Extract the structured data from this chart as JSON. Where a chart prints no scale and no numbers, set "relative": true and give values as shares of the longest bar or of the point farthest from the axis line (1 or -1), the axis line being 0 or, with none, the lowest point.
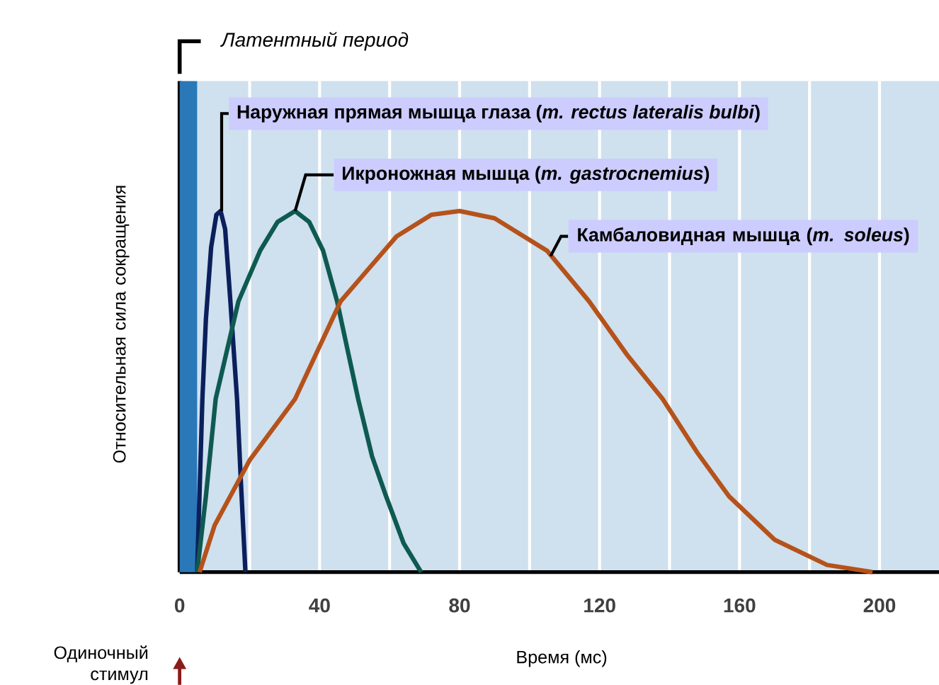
{
  "chart_data": {
    "type": "line",
    "relative": true,
    "xlabel": "Время (мс)",
    "ylabel": "Относительная сила сокращения",
    "xlim": [
      0,
      217
    ],
    "xticks": [
      0,
      40,
      80,
      120,
      160,
      200
    ],
    "grid": "x",
    "bands": [
      {
        "axis": "x",
        "from": 0,
        "to": 5,
        "label": "*Латентный период*",
        "color": "#2a78b8"
      }
    ],
    "annotations": [
      "Одиночный стимул"
    ],
    "series": [
      {
        "name": "Наружная прямая мышца глаза (*m. rectus lateralis bulbi*)",
        "color": "#0b1f5c",
        "x": [
          5,
          6.5,
          7.5,
          9,
          10.5,
          11.7,
          13,
          14.5,
          16.4,
          17.5,
          18.8
        ],
        "values": [
          0,
          0.48,
          0.7,
          0.9,
          0.99,
          1,
          0.95,
          0.75,
          0.48,
          0.25,
          0
        ]
      },
      {
        "name": "Икроножная мышца (*m. gastrocnemius*)",
        "color": "#0e5a50",
        "x": [
          5,
          7.5,
          10.3,
          16.8,
          23,
          28,
          33,
          37,
          41,
          45,
          51,
          55,
          59,
          64,
          69
        ],
        "values": [
          0,
          0.21,
          0.48,
          0.75,
          0.89,
          0.97,
          1,
          0.97,
          0.89,
          0.75,
          0.48,
          0.32,
          0.21,
          0.08,
          0
        ]
      },
      {
        "name": "Камбаловидная мышца (*m. soleus*)",
        "color": "#b5521b",
        "x": [
          5.7,
          10,
          20,
          33,
          46,
          62,
          72,
          80,
          90,
          105,
          117,
          128,
          138,
          148,
          157,
          170,
          185,
          198
        ],
        "values": [
          0,
          0.13,
          0.31,
          0.48,
          0.75,
          0.93,
          0.99,
          1,
          0.98,
          0.89,
          0.75,
          0.6,
          0.48,
          0.33,
          0.21,
          0.09,
          0.02,
          0
        ]
      }
    ]
  }
}
